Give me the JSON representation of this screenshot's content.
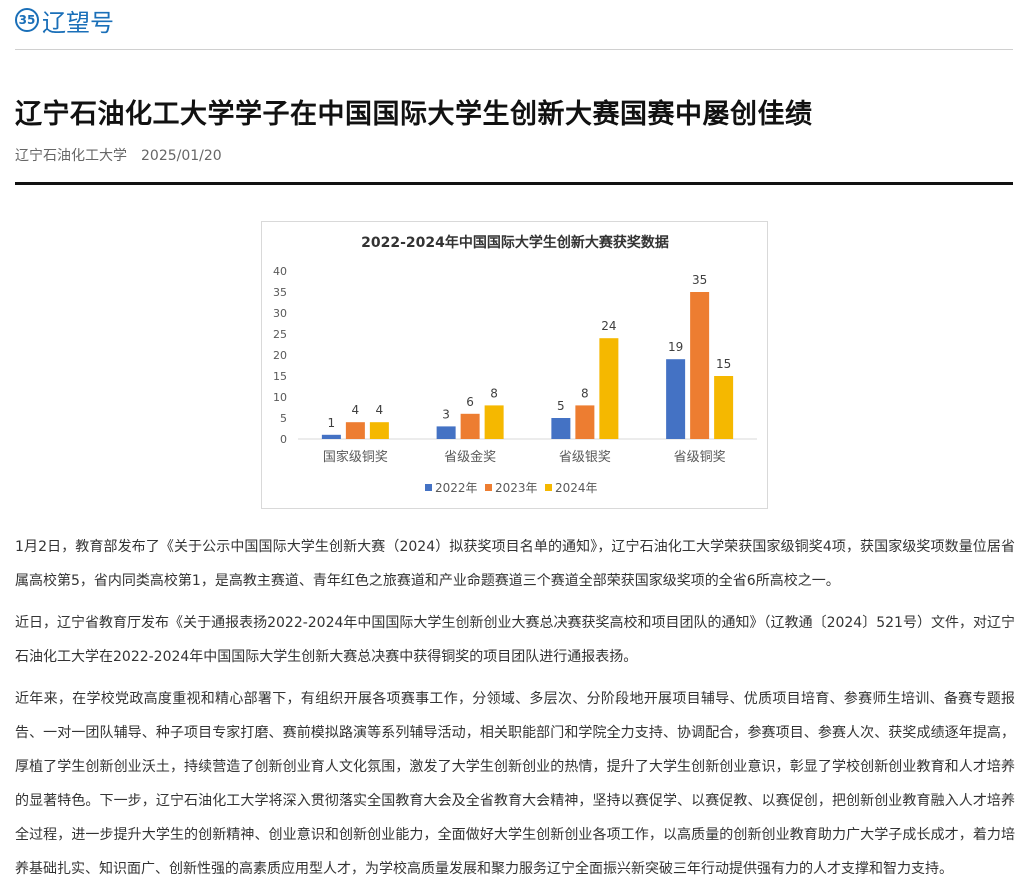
{
  "site": {
    "logo_mark": "35",
    "logo_text": "辽望号"
  },
  "article": {
    "title": "辽宁石油化工大学学子在中国国际大学生创新大赛国赛中屡创佳绩",
    "source": "辽宁石油化工大学",
    "date": "2025/01/20",
    "paragraphs": [
      "1月2日，教育部发布了《关于公示中国国际大学生创新大赛（2024）拟获奖项目名单的通知》，辽宁石油化工大学荣获国家级铜奖4项，获国家级奖项数量位居省属高校第5，省内同类高校第1，是高教主赛道、青年红色之旅赛道和产业命题赛道三个赛道全部荣获国家级奖项的全省6所高校之一。",
      "近日，辽宁省教育厅发布《关于通报表扬2022-2024年中国国际大学生创新创业大赛总决赛获奖高校和项目团队的通知》（辽教通〔2024〕521号）文件，对辽宁石油化工大学在2022-2024年中国国际大学生创新大赛总决赛中获得铜奖的项目团队进行通报表扬。",
      "近年来，在学校党政高度重视和精心部署下，有组织开展各项赛事工作，分领域、多层次、分阶段地开展项目辅导、优质项目培育、参赛师生培训、备赛专题报告、一对一团队辅导、种子项目专家打磨、赛前模拟路演等系列辅导活动，相关职能部门和学院全力支持、协调配合，参赛项目、参赛人次、获奖成绩逐年提高，厚植了学生创新创业沃土，持续营造了创新创业育人文化氛围，激发了大学生创新创业的热情，提升了大学生创新创业意识，彰显了学校创新创业教育和人才培养的显著特色。下一步，辽宁石油化工大学将深入贯彻落实全国教育大会及全省教育大会精神，坚持以赛促学、以赛促教、以赛促创，把创新创业教育融入人才培养全过程，进一步提升大学生的创新精神、创业意识和创新创业能力，全面做好大学生创新创业各项工作，以高质量的创新创业教育助力广大学子成长成才，着力培养基础扎实、知识面广、创新性强的高素质应用型人才，为学校高质量发展和聚力服务辽宁全面振兴新突破三年行动提供强有力的人才支撑和智力支持。"
    ]
  },
  "chart_data": {
    "type": "bar",
    "title": "2022-2024年中国国际大学生创新大赛获奖数据",
    "categories": [
      "国家级铜奖",
      "省级金奖",
      "省级银奖",
      "省级铜奖"
    ],
    "series": [
      {
        "name": "2022年",
        "color": "#4472c4",
        "values": [
          1,
          3,
          5,
          19
        ]
      },
      {
        "name": "2023年",
        "color": "#ed7d31",
        "values": [
          4,
          6,
          8,
          35
        ]
      },
      {
        "name": "2024年",
        "color": "#f5b800",
        "values": [
          4,
          8,
          24,
          15
        ]
      }
    ],
    "ylim": [
      0,
      40
    ],
    "yticks": [
      0,
      5,
      10,
      15,
      20,
      25,
      30,
      35,
      40
    ],
    "grid": false,
    "legend": "bottom",
    "data_labels": true
  }
}
